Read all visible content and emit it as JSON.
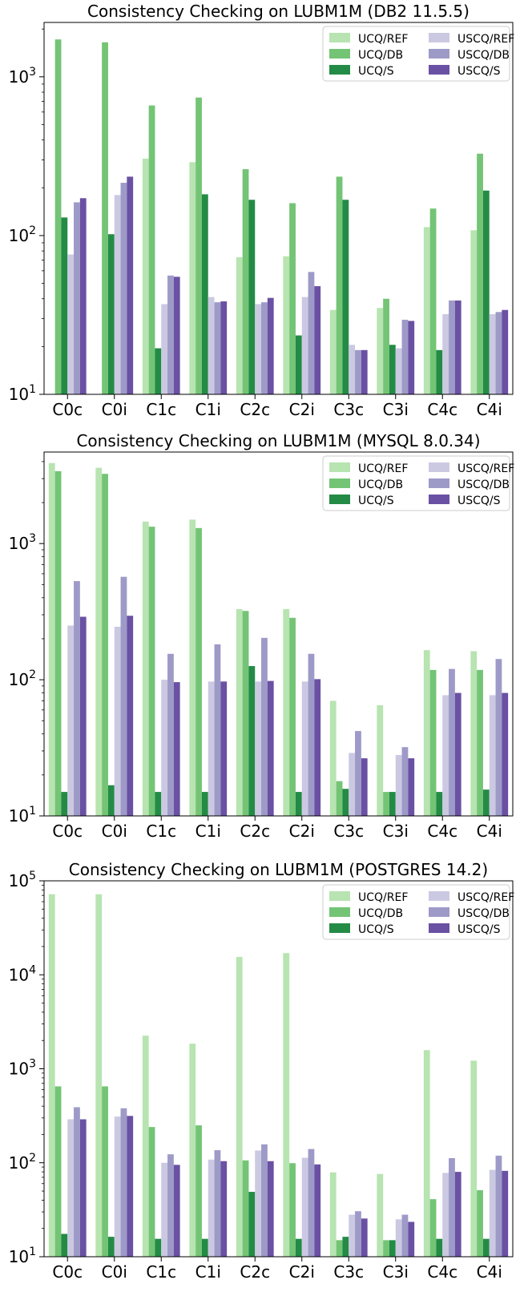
{
  "chart_data": [
    {
      "type": "bar",
      "title": "Consistency Checking on LUBM1M (DB2 11.5.5)",
      "xlabel": "",
      "ylabel": "",
      "yscale": "log",
      "ylim": [
        10,
        2200
      ],
      "yticks": [
        {
          "value": 10,
          "base": "10",
          "exp": "1"
        },
        {
          "value": 100,
          "base": "10",
          "exp": "2"
        },
        {
          "value": 1000,
          "base": "10",
          "exp": "3"
        }
      ],
      "grid": false,
      "legend": {
        "placement": "top-right",
        "columns": 2
      },
      "categories": [
        "C0c",
        "C0i",
        "C1c",
        "C1i",
        "C2c",
        "C2i",
        "C3c",
        "C3i",
        "C4c",
        "C4i"
      ],
      "series": [
        {
          "name": "UCQ/REF",
          "color": "#b7e4b0",
          "values": [
            null,
            null,
            305,
            290,
            73,
            74,
            34,
            35,
            113,
            108
          ]
        },
        {
          "name": "UCQ/DB",
          "color": "#74c476",
          "values": [
            1720,
            1650,
            660,
            740,
            262,
            160,
            235,
            40,
            148,
            328
          ]
        },
        {
          "name": "UCQ/S",
          "color": "#238b45",
          "values": [
            130,
            102,
            19.5,
            182,
            168,
            23.5,
            168,
            20.5,
            19,
            192
          ]
        },
        {
          "name": "USCQ/REF",
          "color": "#cbc9e2",
          "values": [
            76,
            180,
            37,
            41,
            37,
            41,
            20.5,
            19.5,
            32,
            32
          ]
        },
        {
          "name": "USCQ/DB",
          "color": "#9e9ac8",
          "values": [
            162,
            215,
            56,
            38,
            38,
            59,
            19,
            29.5,
            39,
            33
          ]
        },
        {
          "name": "USCQ/S",
          "color": "#6a51a3",
          "values": [
            172,
            235,
            55,
            38.5,
            40.5,
            48,
            19,
            29,
            39,
            34
          ]
        }
      ]
    },
    {
      "type": "bar",
      "title": "Consistency Checking on LUBM1M (MYSQL 8.0.34)",
      "xlabel": "",
      "ylabel": "",
      "yscale": "log",
      "ylim": [
        10,
        4700
      ],
      "yticks": [
        {
          "value": 10,
          "base": "10",
          "exp": "1"
        },
        {
          "value": 100,
          "base": "10",
          "exp": "2"
        },
        {
          "value": 1000,
          "base": "10",
          "exp": "3"
        }
      ],
      "grid": false,
      "legend": {
        "placement": "top-right",
        "columns": 2
      },
      "categories": [
        "C0c",
        "C0i",
        "C1c",
        "C1i",
        "C2c",
        "C2i",
        "C3c",
        "C3i",
        "C4c",
        "C4i"
      ],
      "series": [
        {
          "name": "UCQ/REF",
          "color": "#b7e4b0",
          "values": [
            3900,
            3600,
            1450,
            1500,
            330,
            330,
            70,
            65,
            165,
            162
          ]
        },
        {
          "name": "UCQ/DB",
          "color": "#74c476",
          "values": [
            3400,
            3250,
            1330,
            1300,
            320,
            285,
            18,
            15,
            118,
            118
          ]
        },
        {
          "name": "UCQ/S",
          "color": "#238b45",
          "values": [
            15,
            16.8,
            15,
            15,
            126,
            15,
            15.8,
            15,
            15,
            15.6
          ]
        },
        {
          "name": "USCQ/REF",
          "color": "#cbc9e2",
          "values": [
            250,
            245,
            100,
            97,
            97,
            97,
            29,
            28,
            77,
            77
          ]
        },
        {
          "name": "USCQ/DB",
          "color": "#9e9ac8",
          "values": [
            530,
            570,
            155,
            182,
            203,
            155,
            42,
            32,
            120,
            142
          ]
        },
        {
          "name": "USCQ/S",
          "color": "#6a51a3",
          "values": [
            290,
            295,
            96,
            97,
            98,
            101,
            26.5,
            26.5,
            80,
            80
          ]
        }
      ]
    },
    {
      "type": "bar",
      "title": "Consistency Checking on LUBM1M (POSTGRES 14.2)",
      "xlabel": "",
      "ylabel": "",
      "yscale": "log",
      "ylim": [
        10,
        100000
      ],
      "yticks": [
        {
          "value": 10,
          "base": "10",
          "exp": "1"
        },
        {
          "value": 100,
          "base": "10",
          "exp": "2"
        },
        {
          "value": 1000,
          "base": "10",
          "exp": "3"
        },
        {
          "value": 10000,
          "base": "10",
          "exp": "4"
        },
        {
          "value": 100000,
          "base": "10",
          "exp": "5"
        }
      ],
      "grid": false,
      "legend": {
        "placement": "top-right",
        "columns": 2
      },
      "categories": [
        "C0c",
        "C0i",
        "C1c",
        "C1i",
        "C2c",
        "C2i",
        "C3c",
        "C3i",
        "C4c",
        "C4i"
      ],
      "series": [
        {
          "name": "UCQ/REF",
          "color": "#b7e4b0",
          "values": [
            72000,
            72000,
            2250,
            1850,
            15500,
            17000,
            79,
            76,
            1580,
            1220
          ]
        },
        {
          "name": "UCQ/DB",
          "color": "#74c476",
          "values": [
            650,
            650,
            240,
            250,
            106,
            99,
            15,
            15,
            41,
            51
          ]
        },
        {
          "name": "UCQ/S",
          "color": "#238b45",
          "values": [
            17.5,
            16.3,
            15.5,
            15.5,
            49,
            15.5,
            16.3,
            15,
            15.5,
            15.5
          ]
        },
        {
          "name": "USCQ/REF",
          "color": "#cbc9e2",
          "values": [
            290,
            310,
            100,
            108,
            135,
            113,
            28,
            25,
            78,
            84
          ]
        },
        {
          "name": "USCQ/DB",
          "color": "#9e9ac8",
          "values": [
            390,
            380,
            123,
            136,
            157,
            140,
            30.5,
            28,
            112,
            119
          ]
        },
        {
          "name": "USCQ/S",
          "color": "#6a51a3",
          "values": [
            290,
            315,
            95,
            104,
            104,
            96,
            25.5,
            23.5,
            80,
            82
          ]
        }
      ]
    }
  ]
}
